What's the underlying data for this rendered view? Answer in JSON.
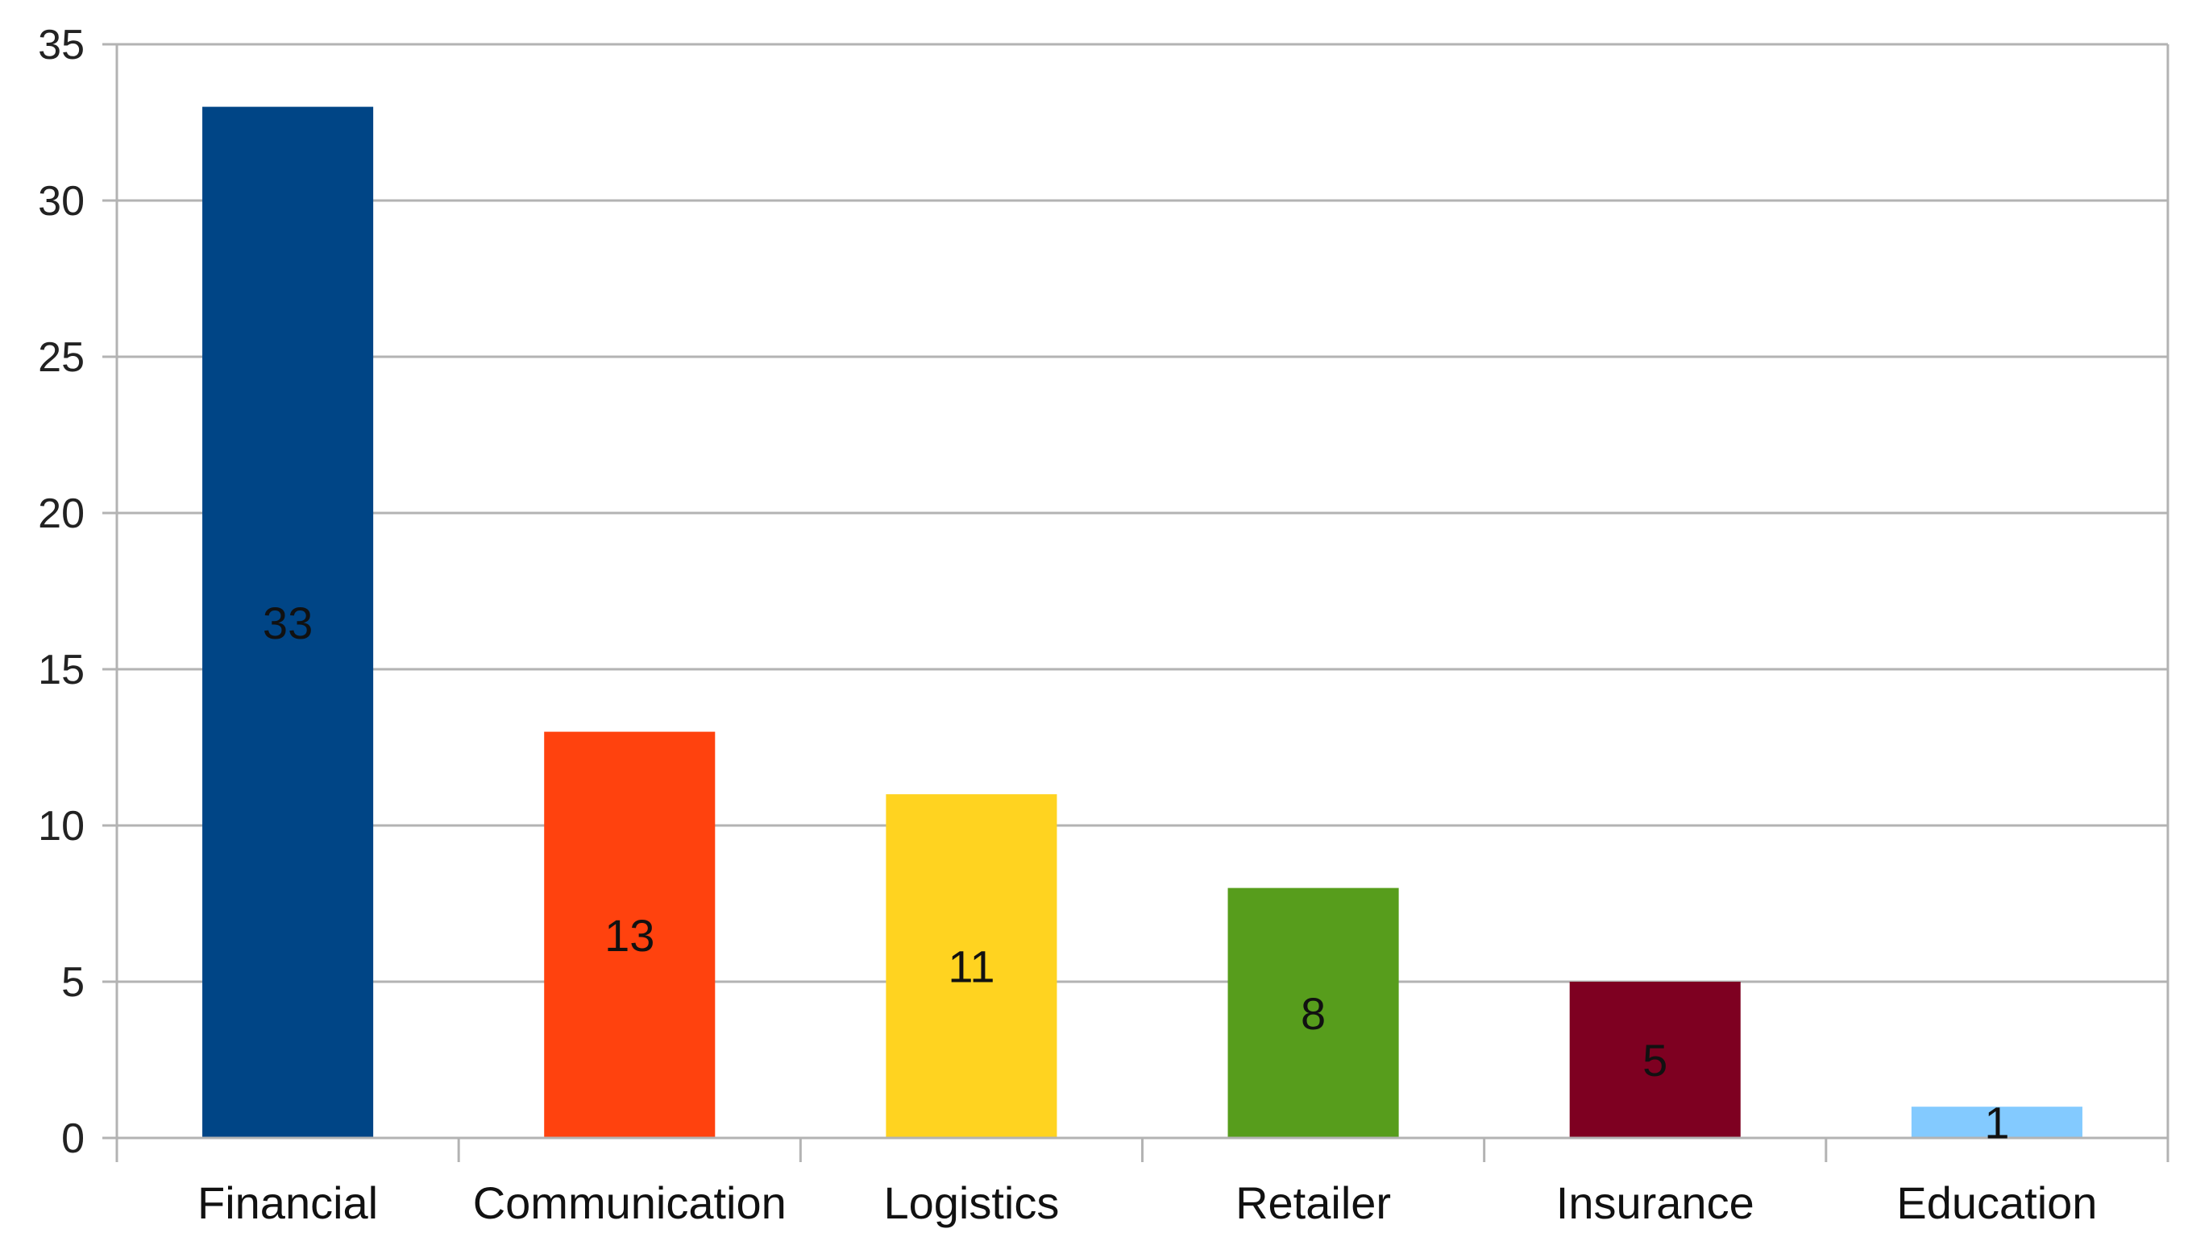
{
  "chart_data": {
    "type": "bar",
    "categories": [
      "Financial",
      "Communication",
      "Logistics",
      "Retailer",
      "Insurance",
      "Education"
    ],
    "values": [
      33,
      13,
      11,
      8,
      5,
      1
    ],
    "colors": [
      "#004586",
      "#ff420e",
      "#ffd320",
      "#579d1c",
      "#7e0021",
      "#83caff"
    ],
    "data_labels": [
      "33",
      "13",
      "11",
      "8",
      "5",
      "1"
    ],
    "title": "",
    "xlabel": "",
    "ylabel": "",
    "ylim": [
      0,
      35
    ],
    "yticks": [
      0,
      5,
      10,
      15,
      20,
      25,
      30,
      35
    ],
    "ytick_labels": [
      "0",
      "5",
      "10",
      "15",
      "20",
      "25",
      "30",
      "35"
    ],
    "grid": true,
    "legend": "none"
  }
}
